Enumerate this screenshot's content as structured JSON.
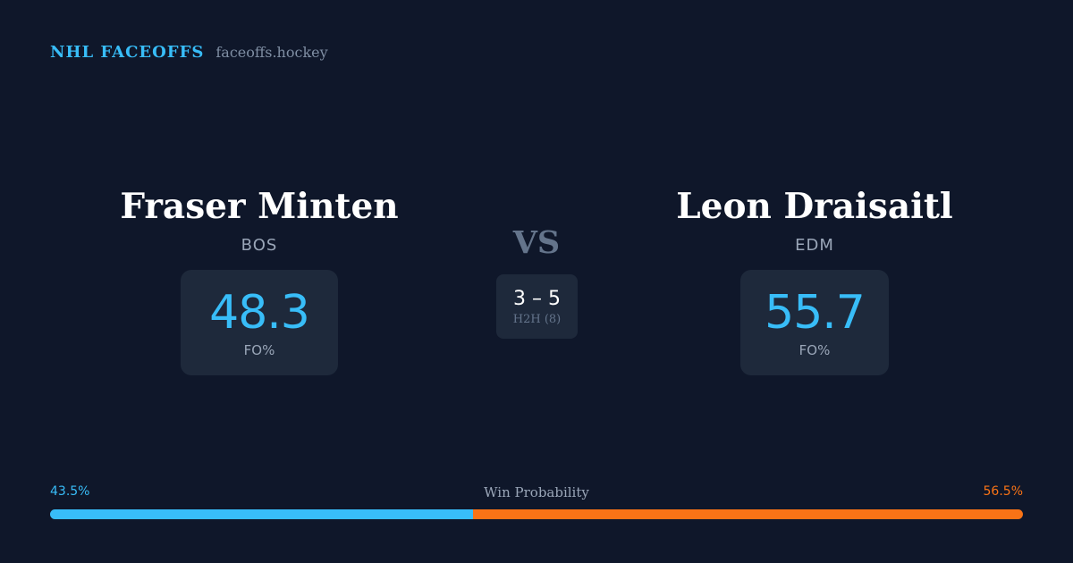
{
  "header": {
    "brand": "NHL FACEOFFS",
    "site": "faceoffs.hockey"
  },
  "matchup": {
    "left_player": {
      "name": "Fraser Minten",
      "team": "BOS",
      "fo_pct": "48.3",
      "fo_label": "FO%"
    },
    "right_player": {
      "name": "Leon Draisaitl",
      "team": "EDM",
      "fo_pct": "55.7",
      "fo_label": "FO%"
    },
    "vs_label": "VS",
    "h2h": {
      "score": "3 – 5",
      "label": "H2H (8)"
    }
  },
  "win_probability": {
    "title": "Win Probability",
    "left_label": "43.5%",
    "right_label": "56.5%",
    "left_value": 43.5,
    "right_value": 56.5
  },
  "colors": {
    "background": "#0f172a",
    "card": "#1e293b",
    "accent_blue": "#38bdf8",
    "accent_orange": "#f97316",
    "muted": "#9aa6b8"
  }
}
